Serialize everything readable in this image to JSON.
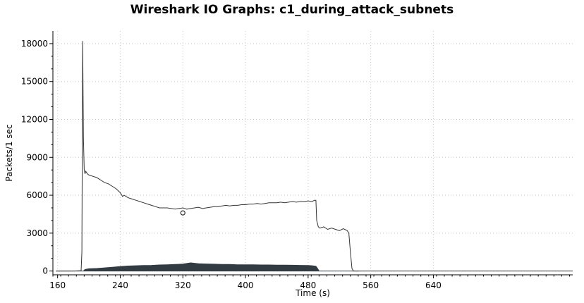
{
  "chart_data": {
    "type": "line",
    "title": "Wireshark IO Graphs: c1_during_attack_subnets",
    "xlabel": "Time (s)",
    "ylabel": "Packets/1 sec",
    "xlim": [
      154,
      818
    ],
    "ylim": [
      -300,
      19000
    ],
    "x_ticks": [
      160,
      240,
      320,
      400,
      480,
      560,
      640
    ],
    "y_ticks": [
      0,
      3000,
      6000,
      9000,
      12000,
      15000,
      18000
    ],
    "grid": true,
    "legend": "none",
    "series": [
      {
        "style": "line",
        "color": "#333333",
        "x": [
          158,
          180,
          190,
          191,
          192,
          193,
          194,
          195,
          196,
          198,
          200,
          205,
          210,
          215,
          220,
          225,
          230,
          235,
          240,
          243,
          245,
          250,
          255,
          260,
          265,
          270,
          275,
          280,
          285,
          290,
          295,
          300,
          305,
          310,
          315,
          320,
          325,
          330,
          335,
          340,
          345,
          350,
          355,
          360,
          365,
          370,
          375,
          380,
          385,
          390,
          395,
          400,
          405,
          410,
          415,
          420,
          425,
          430,
          435,
          440,
          445,
          450,
          455,
          460,
          465,
          470,
          475,
          480,
          485,
          488,
          490,
          491,
          493,
          495,
          500,
          505,
          510,
          515,
          520,
          525,
          530,
          532,
          534,
          536,
          538,
          540,
          545,
          550,
          560,
          575,
          600,
          640,
          680,
          700,
          740,
          780,
          818
        ],
        "y": [
          0,
          0,
          30,
          1500,
          18200,
          10500,
          8000,
          7700,
          7900,
          7700,
          7600,
          7500,
          7400,
          7200,
          7000,
          6900,
          6700,
          6500,
          6200,
          5900,
          6000,
          5800,
          5700,
          5600,
          5500,
          5400,
          5300,
          5200,
          5100,
          5000,
          5000,
          5000,
          4950,
          4900,
          4950,
          5000,
          4900,
          4950,
          5000,
          5050,
          4950,
          5000,
          5050,
          5100,
          5100,
          5150,
          5200,
          5150,
          5200,
          5200,
          5250,
          5250,
          5300,
          5300,
          5350,
          5300,
          5350,
          5400,
          5400,
          5400,
          5450,
          5400,
          5450,
          5500,
          5450,
          5500,
          5500,
          5550,
          5500,
          5600,
          5600,
          4000,
          3500,
          3400,
          3500,
          3300,
          3400,
          3300,
          3200,
          3350,
          3200,
          3000,
          1500,
          200,
          0,
          0,
          0,
          0,
          0,
          0,
          0,
          0,
          0,
          0,
          0,
          0,
          0
        ]
      },
      {
        "style": "filled",
        "color": "#333b42",
        "x": [
          158,
          180,
          193,
          195,
          200,
          210,
          220,
          230,
          240,
          250,
          260,
          270,
          280,
          290,
          300,
          310,
          320,
          325,
          330,
          340,
          350,
          360,
          370,
          380,
          390,
          400,
          410,
          420,
          430,
          440,
          450,
          460,
          470,
          480,
          485,
          490,
          492,
          494,
          500,
          520,
          545
        ],
        "y": [
          0,
          0,
          0,
          120,
          180,
          200,
          250,
          300,
          350,
          400,
          420,
          440,
          450,
          480,
          500,
          520,
          550,
          600,
          650,
          580,
          560,
          540,
          520,
          520,
          500,
          500,
          490,
          480,
          480,
          470,
          470,
          460,
          450,
          440,
          420,
          380,
          200,
          0,
          0,
          0,
          0
        ]
      }
    ],
    "annotations": [
      {
        "type": "circle-marker",
        "x": 320,
        "y": 4600
      }
    ]
  }
}
